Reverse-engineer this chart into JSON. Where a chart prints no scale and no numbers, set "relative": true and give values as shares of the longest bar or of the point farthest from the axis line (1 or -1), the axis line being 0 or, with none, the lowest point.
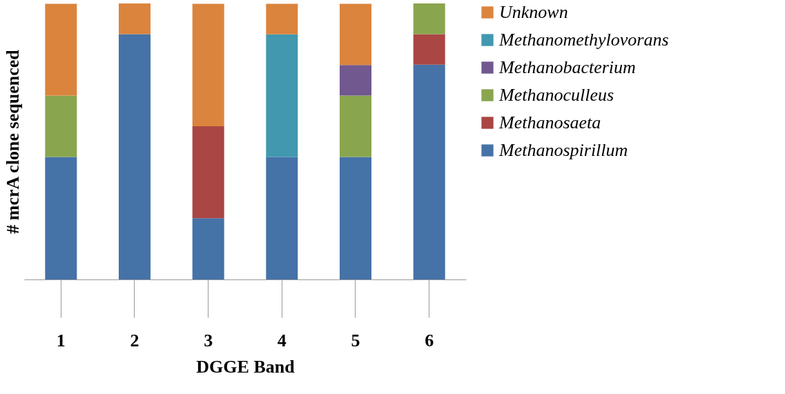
{
  "chart_data": {
    "type": "bar",
    "stacked": true,
    "relative": true,
    "xlabel": "DGGE Band",
    "ylabel": "# mcrA clone sequenced",
    "legend": "right",
    "grid": false,
    "categories": [
      "1",
      "2",
      "3",
      "4",
      "5",
      "6"
    ],
    "series": [
      {
        "name": "Methanospirillum",
        "color": "#4572a7",
        "values": [
          0.444,
          0.889,
          0.222,
          0.444,
          0.444,
          0.778
        ]
      },
      {
        "name": "Methanosaeta",
        "color": "#aa4643",
        "values": [
          null,
          null,
          0.333,
          null,
          null,
          0.111
        ]
      },
      {
        "name": "Methanoculleus",
        "color": "#89a54e",
        "values": [
          0.222,
          null,
          null,
          null,
          0.222,
          0.111
        ]
      },
      {
        "name": "Methanobacterium",
        "color": "#71588f",
        "values": [
          null,
          null,
          null,
          null,
          0.111,
          null
        ]
      },
      {
        "name": "Methanomethylovorans",
        "color": "#4198af",
        "values": [
          null,
          null,
          null,
          0.444,
          null,
          null
        ]
      },
      {
        "name": "Unknown",
        "color": "#db843d",
        "values": [
          0.333,
          0.111,
          0.444,
          0.111,
          0.222,
          null
        ]
      }
    ]
  }
}
